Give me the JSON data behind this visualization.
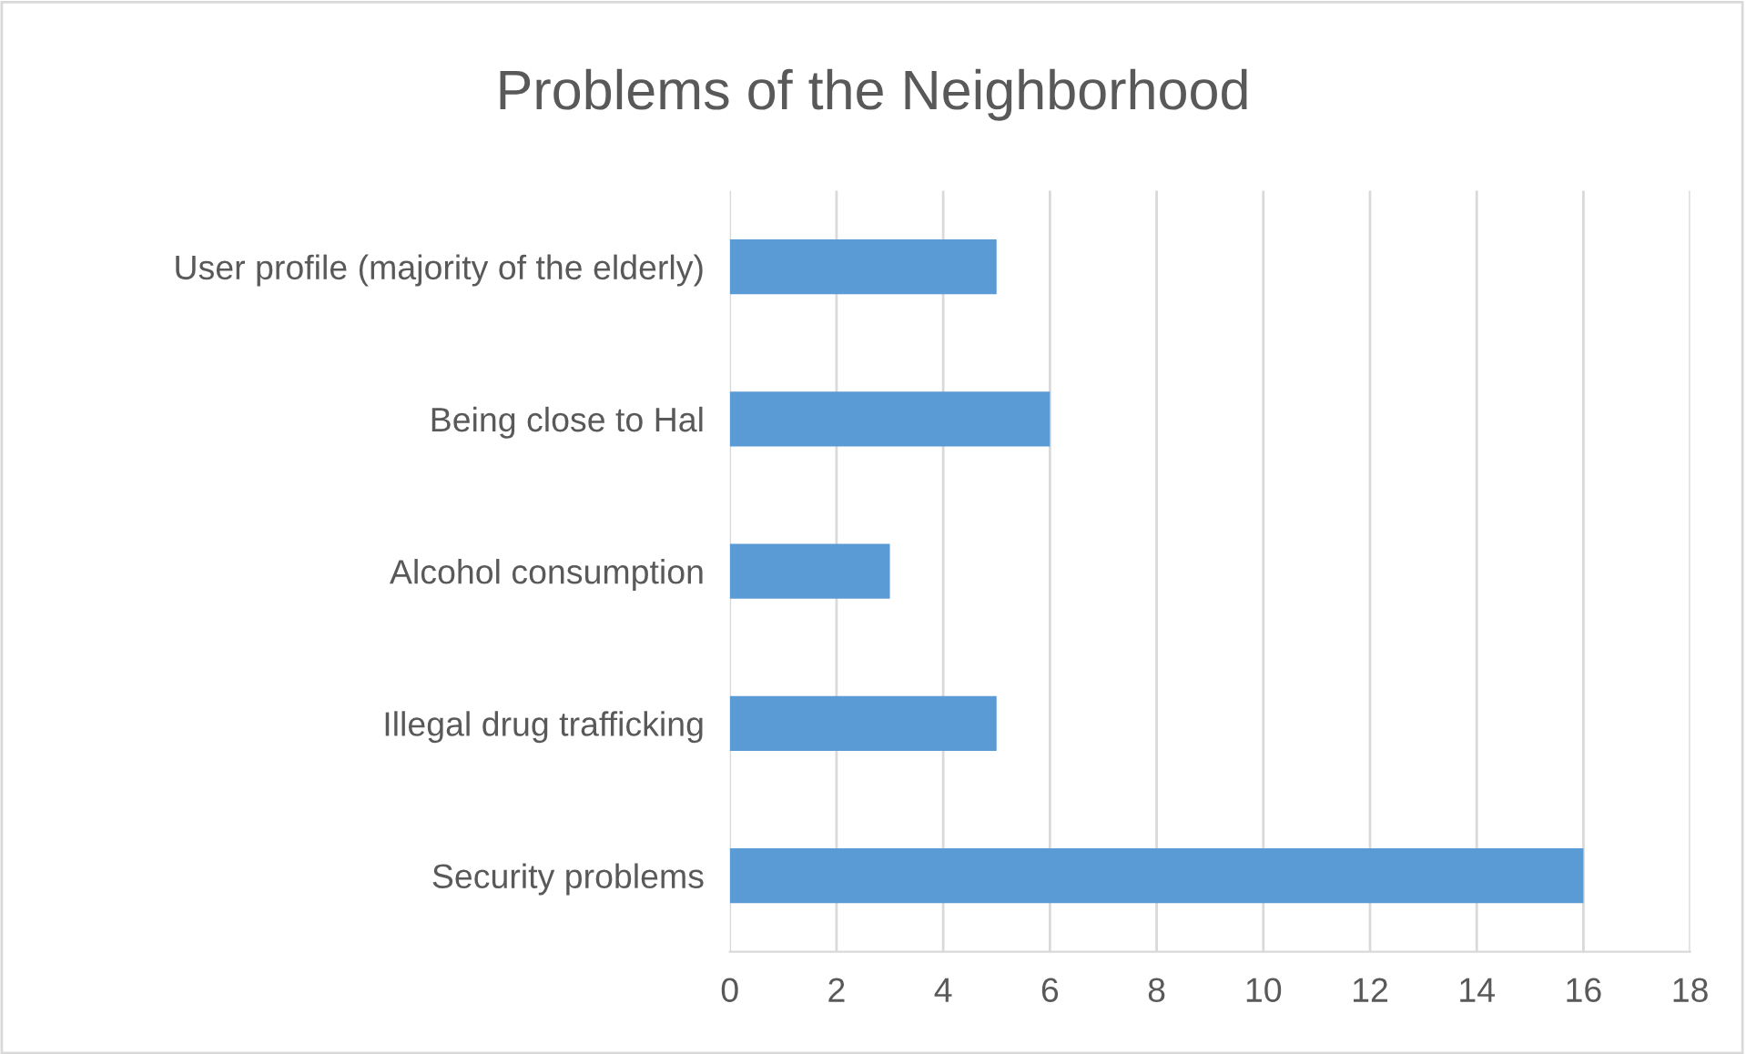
{
  "chart_data": {
    "type": "bar",
    "orientation": "horizontal",
    "title": "Problems of the Neighborhood",
    "categories": [
      "User profile (majority of the elderly)",
      "Being close to Hal",
      "Alcohol consumption",
      "Illegal drug trafficking",
      "Security problems"
    ],
    "values": [
      5,
      6,
      3,
      5,
      16
    ],
    "color": "#5b9bd5",
    "xlim": [
      0,
      18
    ],
    "xticks": [
      0,
      2,
      4,
      6,
      8,
      10,
      12,
      14,
      16,
      18
    ],
    "grid": "x",
    "legend": false
  }
}
